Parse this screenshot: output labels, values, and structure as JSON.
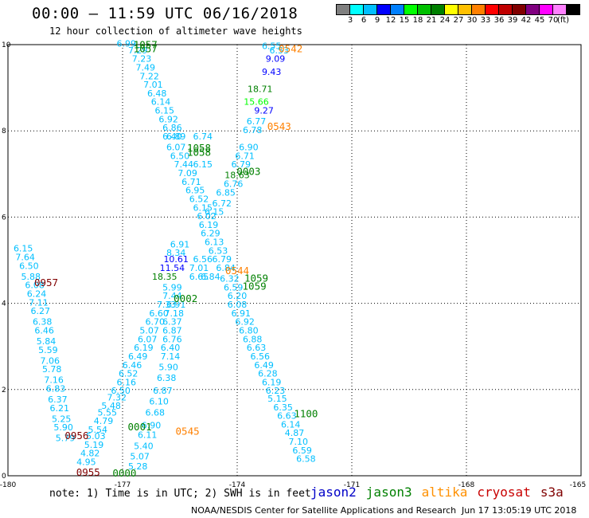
{
  "header": {
    "title": "00:00 – 11:59 UTC 06/16/2018",
    "subtitle": "12 hour collection of altimeter wave heights"
  },
  "colorbar": {
    "unit": "(ft)",
    "colors": [
      "#7f7f7f",
      "#00ffff",
      "#00bfff",
      "#0000ff",
      "#0080ff",
      "#00ff00",
      "#00c000",
      "#008000",
      "#ffff00",
      "#ffc000",
      "#ff8000",
      "#ff0000",
      "#c00000",
      "#800000",
      "#800080",
      "#ff00ff",
      "#ff80ff",
      "#000000"
    ],
    "labels": [
      "3",
      "6",
      "9",
      "12",
      "15",
      "18",
      "21",
      "24",
      "27",
      "30",
      "33",
      "36",
      "39",
      "42",
      "45",
      "70"
    ]
  },
  "chart_data": {
    "type": "scatter",
    "xlim": [
      -180,
      -165
    ],
    "ylim": [
      0,
      10
    ],
    "x_ticks": [
      "-180",
      "-177",
      "-174",
      "-171",
      "-168",
      "-165"
    ],
    "y_ticks": [
      "0",
      "2",
      "4",
      "6",
      "8",
      "10"
    ],
    "grid": true,
    "point_labels": [
      {
        "x": -176.9,
        "y": 9.95,
        "text": "6.99",
        "color": "#00bfff"
      },
      {
        "x": -176.6,
        "y": 9.8,
        "text": "7.29",
        "color": "#00bfff"
      },
      {
        "x": -176.5,
        "y": 9.6,
        "text": "7.23",
        "color": "#00bfff"
      },
      {
        "x": -176.4,
        "y": 9.4,
        "text": "7.49",
        "color": "#00bfff"
      },
      {
        "x": -176.3,
        "y": 9.2,
        "text": "7.22",
        "color": "#00bfff"
      },
      {
        "x": -176.2,
        "y": 9.0,
        "text": "7.01",
        "color": "#00bfff"
      },
      {
        "x": -176.1,
        "y": 8.8,
        "text": "6.48",
        "color": "#00bfff"
      },
      {
        "x": -176.0,
        "y": 8.6,
        "text": "6.14",
        "color": "#00bfff"
      },
      {
        "x": -175.9,
        "y": 8.4,
        "text": "6.15",
        "color": "#00bfff"
      },
      {
        "x": -175.8,
        "y": 8.2,
        "text": "6.92",
        "color": "#00bfff"
      },
      {
        "x": -175.7,
        "y": 8.0,
        "text": "6.86",
        "color": "#00bfff"
      },
      {
        "x": -175.7,
        "y": 7.8,
        "text": "6.40",
        "color": "#00bfff"
      },
      {
        "x": -175.6,
        "y": 7.55,
        "text": "6.07",
        "color": "#00bfff"
      },
      {
        "x": -175.5,
        "y": 7.35,
        "text": "6.50",
        "color": "#00bfff"
      },
      {
        "x": -175.4,
        "y": 7.15,
        "text": "7.44",
        "color": "#00bfff"
      },
      {
        "x": -175.3,
        "y": 6.95,
        "text": "7.09",
        "color": "#00bfff"
      },
      {
        "x": -175.2,
        "y": 6.75,
        "text": "6.71",
        "color": "#00bfff"
      },
      {
        "x": -175.1,
        "y": 6.55,
        "text": "6.95",
        "color": "#00bfff"
      },
      {
        "x": -175.0,
        "y": 6.35,
        "text": "6.52",
        "color": "#00bfff"
      },
      {
        "x": -174.9,
        "y": 6.15,
        "text": "6.15",
        "color": "#00bfff"
      },
      {
        "x": -174.8,
        "y": 5.95,
        "text": "6.02",
        "color": "#00bfff"
      },
      {
        "x": -174.75,
        "y": 5.75,
        "text": "6.19",
        "color": "#00bfff"
      },
      {
        "x": -174.7,
        "y": 5.55,
        "text": "6.29",
        "color": "#00bfff"
      },
      {
        "x": -174.6,
        "y": 5.35,
        "text": "6.13",
        "color": "#00bfff"
      },
      {
        "x": -174.5,
        "y": 5.15,
        "text": "6.53",
        "color": "#00bfff"
      },
      {
        "x": -174.4,
        "y": 4.95,
        "text": "6.79",
        "color": "#00bfff"
      },
      {
        "x": -174.3,
        "y": 4.75,
        "text": "6.84",
        "color": "#00bfff"
      },
      {
        "x": -174.2,
        "y": 4.5,
        "text": "6.32",
        "color": "#00bfff"
      },
      {
        "x": -174.1,
        "y": 4.3,
        "text": "6.59",
        "color": "#00bfff"
      },
      {
        "x": -174.0,
        "y": 4.1,
        "text": "6.20",
        "color": "#00bfff"
      },
      {
        "x": -174.0,
        "y": 3.9,
        "text": "6.08",
        "color": "#00bfff"
      },
      {
        "x": -173.9,
        "y": 3.7,
        "text": "6.91",
        "color": "#00bfff"
      },
      {
        "x": -173.8,
        "y": 3.5,
        "text": "6.92",
        "color": "#00bfff"
      },
      {
        "x": -173.7,
        "y": 3.3,
        "text": "6.80",
        "color": "#00bfff"
      },
      {
        "x": -173.6,
        "y": 3.1,
        "text": "6.88",
        "color": "#00bfff"
      },
      {
        "x": -173.5,
        "y": 2.9,
        "text": "6.63",
        "color": "#00bfff"
      },
      {
        "x": -173.4,
        "y": 2.7,
        "text": "6.56",
        "color": "#00bfff"
      },
      {
        "x": -173.3,
        "y": 2.5,
        "text": "6.49",
        "color": "#00bfff"
      },
      {
        "x": -173.2,
        "y": 2.3,
        "text": "6.28",
        "color": "#00bfff"
      },
      {
        "x": -173.1,
        "y": 2.1,
        "text": "6.19",
        "color": "#00bfff"
      },
      {
        "x": -173.0,
        "y": 1.9,
        "text": "6.23",
        "color": "#00bfff"
      },
      {
        "x": -172.95,
        "y": 1.72,
        "text": "5.15",
        "color": "#00bfff"
      },
      {
        "x": -172.8,
        "y": 1.52,
        "text": "6.35",
        "color": "#00bfff"
      },
      {
        "x": -172.7,
        "y": 1.32,
        "text": "6.63",
        "color": "#00bfff"
      },
      {
        "x": -172.6,
        "y": 1.12,
        "text": "6.14",
        "color": "#00bfff"
      },
      {
        "x": -172.5,
        "y": 0.92,
        "text": "4.87",
        "color": "#00bfff"
      },
      {
        "x": -172.4,
        "y": 0.72,
        "text": "7.10",
        "color": "#00bfff"
      },
      {
        "x": -172.3,
        "y": 0.52,
        "text": "6.59",
        "color": "#00bfff"
      },
      {
        "x": -172.2,
        "y": 0.32,
        "text": "6.58",
        "color": "#00bfff"
      },
      {
        "x": -173.1,
        "y": 9.9,
        "text": "6.55",
        "color": "#00bfff"
      },
      {
        "x": -172.9,
        "y": 9.8,
        "text": "6.53",
        "color": "#00bfff"
      },
      {
        "x": -173.0,
        "y": 9.6,
        "text": "9.09",
        "color": "#0000ff"
      },
      {
        "x": -173.1,
        "y": 9.3,
        "text": "9.43",
        "color": "#0000ff"
      },
      {
        "x": -173.3,
        "y": 8.4,
        "text": "9.27",
        "color": "#0000ff"
      },
      {
        "x": -173.4,
        "y": 8.9,
        "text": "18.71",
        "color": "#008000"
      },
      {
        "x": -173.5,
        "y": 8.6,
        "text": "15.66",
        "color": "#00ff00"
      },
      {
        "x": -173.5,
        "y": 8.15,
        "text": "6.77",
        "color": "#00bfff"
      },
      {
        "x": -173.6,
        "y": 7.95,
        "text": "6.78",
        "color": "#00bfff"
      },
      {
        "x": -173.7,
        "y": 7.55,
        "text": "6.90",
        "color": "#00bfff"
      },
      {
        "x": -173.8,
        "y": 7.35,
        "text": "6.71",
        "color": "#00bfff"
      },
      {
        "x": -173.9,
        "y": 7.15,
        "text": "6.79",
        "color": "#00bfff"
      },
      {
        "x": -174.0,
        "y": 6.9,
        "text": "18.63",
        "color": "#008000"
      },
      {
        "x": -174.1,
        "y": 6.7,
        "text": "6.76",
        "color": "#00bfff"
      },
      {
        "x": -174.3,
        "y": 6.5,
        "text": "6.85",
        "color": "#00bfff"
      },
      {
        "x": -174.4,
        "y": 6.25,
        "text": "6.72",
        "color": "#00bfff"
      },
      {
        "x": -174.6,
        "y": 6.05,
        "text": "6.15",
        "color": "#00bfff"
      },
      {
        "x": -175.6,
        "y": 4.95,
        "text": "10.61",
        "color": "#0000ff"
      },
      {
        "x": -175.7,
        "y": 4.75,
        "text": "11.54",
        "color": "#0000ff"
      },
      {
        "x": -175.5,
        "y": 5.3,
        "text": "6.91",
        "color": "#00bfff"
      },
      {
        "x": -175.6,
        "y": 5.1,
        "text": "8.34",
        "color": "#00bfff"
      },
      {
        "x": -175.9,
        "y": 4.55,
        "text": "18.35",
        "color": "#008000"
      },
      {
        "x": -175.7,
        "y": 4.3,
        "text": "5.99",
        "color": "#00bfff"
      },
      {
        "x": -175.7,
        "y": 4.1,
        "text": "7.44",
        "color": "#00bfff"
      },
      {
        "x": -175.85,
        "y": 3.9,
        "text": "7.33",
        "color": "#00bfff"
      },
      {
        "x": -175.6,
        "y": 3.9,
        "text": "6.91",
        "color": "#00bfff"
      },
      {
        "x": -176.05,
        "y": 3.7,
        "text": "6.60",
        "color": "#00bfff"
      },
      {
        "x": -175.65,
        "y": 3.7,
        "text": "7.18",
        "color": "#00bfff"
      },
      {
        "x": -176.15,
        "y": 3.5,
        "text": "6.70",
        "color": "#00bfff"
      },
      {
        "x": -175.7,
        "y": 3.5,
        "text": "6.37",
        "color": "#00bfff"
      },
      {
        "x": -176.3,
        "y": 3.3,
        "text": "5.07",
        "color": "#00bfff"
      },
      {
        "x": -175.7,
        "y": 3.3,
        "text": "6.87",
        "color": "#00bfff"
      },
      {
        "x": -176.35,
        "y": 3.1,
        "text": "6.07",
        "color": "#00bfff"
      },
      {
        "x": -175.7,
        "y": 3.1,
        "text": "6.76",
        "color": "#00bfff"
      },
      {
        "x": -176.45,
        "y": 2.9,
        "text": "6.19",
        "color": "#00bfff"
      },
      {
        "x": -175.75,
        "y": 2.9,
        "text": "6.40",
        "color": "#00bfff"
      },
      {
        "x": -176.6,
        "y": 2.7,
        "text": "6.49",
        "color": "#00bfff"
      },
      {
        "x": -175.75,
        "y": 2.7,
        "text": "7.14",
        "color": "#00bfff"
      },
      {
        "x": -176.75,
        "y": 2.5,
        "text": "6.46",
        "color": "#00bfff"
      },
      {
        "x": -175.8,
        "y": 2.45,
        "text": "5.90",
        "color": "#00bfff"
      },
      {
        "x": -176.85,
        "y": 2.3,
        "text": "6.52",
        "color": "#00bfff"
      },
      {
        "x": -176.9,
        "y": 2.1,
        "text": "6.16",
        "color": "#00bfff"
      },
      {
        "x": -175.85,
        "y": 2.2,
        "text": "6.38",
        "color": "#00bfff"
      },
      {
        "x": -177.05,
        "y": 1.9,
        "text": "6.50",
        "color": "#00bfff"
      },
      {
        "x": -175.95,
        "y": 1.9,
        "text": "6.87",
        "color": "#00bfff"
      },
      {
        "x": -177.15,
        "y": 1.75,
        "text": "7.32",
        "color": "#00bfff"
      },
      {
        "x": -177.3,
        "y": 1.55,
        "text": "5.48",
        "color": "#00bfff"
      },
      {
        "x": -176.05,
        "y": 1.65,
        "text": "6.10",
        "color": "#00bfff"
      },
      {
        "x": -177.4,
        "y": 1.4,
        "text": "5.55",
        "color": "#00bfff"
      },
      {
        "x": -176.15,
        "y": 1.4,
        "text": "6.68",
        "color": "#00bfff"
      },
      {
        "x": -177.5,
        "y": 1.2,
        "text": "4.79",
        "color": "#00bfff"
      },
      {
        "x": -176.25,
        "y": 1.1,
        "text": "6.90",
        "color": "#00bfff"
      },
      {
        "x": -177.65,
        "y": 1.0,
        "text": "5.54",
        "color": "#00bfff"
      },
      {
        "x": -177.7,
        "y": 0.85,
        "text": "5.03",
        "color": "#00bfff"
      },
      {
        "x": -176.35,
        "y": 0.88,
        "text": "6.11",
        "color": "#00bfff"
      },
      {
        "x": -177.75,
        "y": 0.65,
        "text": "5.19",
        "color": "#00bfff"
      },
      {
        "x": -176.45,
        "y": 0.62,
        "text": "5.40",
        "color": "#00bfff"
      },
      {
        "x": -177.85,
        "y": 0.45,
        "text": "4.82",
        "color": "#00bfff"
      },
      {
        "x": -176.55,
        "y": 0.38,
        "text": "5.07",
        "color": "#00bfff"
      },
      {
        "x": -177.95,
        "y": 0.25,
        "text": "4.95",
        "color": "#00bfff"
      },
      {
        "x": -176.6,
        "y": 0.15,
        "text": "5.28",
        "color": "#00bfff"
      },
      {
        "x": -179.6,
        "y": 5.2,
        "text": "6.15",
        "color": "#00bfff"
      },
      {
        "x": -179.55,
        "y": 5.0,
        "text": "7.64",
        "color": "#00bfff"
      },
      {
        "x": -179.45,
        "y": 4.8,
        "text": "6.50",
        "color": "#00bfff"
      },
      {
        "x": -179.4,
        "y": 4.55,
        "text": "5.88",
        "color": "#00bfff"
      },
      {
        "x": -179.3,
        "y": 4.35,
        "text": "6.08",
        "color": "#00bfff"
      },
      {
        "x": -179.25,
        "y": 4.15,
        "text": "6.24",
        "color": "#00bfff"
      },
      {
        "x": -179.2,
        "y": 3.95,
        "text": "7.11",
        "color": "#00bfff"
      },
      {
        "x": -179.15,
        "y": 3.75,
        "text": "6.27",
        "color": "#00bfff"
      },
      {
        "x": -179.1,
        "y": 3.5,
        "text": "6.38",
        "color": "#00bfff"
      },
      {
        "x": -179.05,
        "y": 3.3,
        "text": "6.46",
        "color": "#00bfff"
      },
      {
        "x": -179.0,
        "y": 3.05,
        "text": "5.84",
        "color": "#00bfff"
      },
      {
        "x": -178.95,
        "y": 2.85,
        "text": "5.59",
        "color": "#00bfff"
      },
      {
        "x": -178.9,
        "y": 2.6,
        "text": "7.06",
        "color": "#00bfff"
      },
      {
        "x": -178.85,
        "y": 2.4,
        "text": "5.78",
        "color": "#00bfff"
      },
      {
        "x": -178.8,
        "y": 2.15,
        "text": "7.16",
        "color": "#00bfff"
      },
      {
        "x": -178.75,
        "y": 1.95,
        "text": "6.83",
        "color": "#00bfff"
      },
      {
        "x": -178.7,
        "y": 1.7,
        "text": "6.37",
        "color": "#00bfff"
      },
      {
        "x": -178.65,
        "y": 1.5,
        "text": "6.21",
        "color": "#00bfff"
      },
      {
        "x": -178.6,
        "y": 1.25,
        "text": "5.25",
        "color": "#00bfff"
      },
      {
        "x": -178.55,
        "y": 1.05,
        "text": "5.90",
        "color": "#00bfff"
      },
      {
        "x": -178.5,
        "y": 0.8,
        "text": "5.79",
        "color": "#00bfff"
      },
      {
        "x": -175.0,
        "y": 4.55,
        "text": "6.65",
        "color": "#00bfff"
      },
      {
        "x": -174.7,
        "y": 4.55,
        "text": "6.84",
        "color": "#00bfff"
      },
      {
        "x": -175.0,
        "y": 4.75,
        "text": "7.01",
        "color": "#00bfff"
      },
      {
        "x": -174.9,
        "y": 4.95,
        "text": "6.56",
        "color": "#00bfff"
      },
      {
        "x": -175.6,
        "y": 7.8,
        "text": "6.89",
        "color": "#00bfff"
      },
      {
        "x": -174.9,
        "y": 7.8,
        "text": "6.74",
        "color": "#00bfff"
      },
      {
        "x": -174.9,
        "y": 7.15,
        "text": "6.15",
        "color": "#00bfff"
      }
    ],
    "time_labels": [
      {
        "x": -176.4,
        "y": 9.92,
        "text": "1057",
        "color": "#008000"
      },
      {
        "x": -176.4,
        "y": 9.82,
        "text": "1057",
        "color": "#008000"
      },
      {
        "x": -172.6,
        "y": 9.82,
        "text": "0542",
        "color": "#ff8000"
      },
      {
        "x": -172.9,
        "y": 8.02,
        "text": "0543",
        "color": "#ff8000"
      },
      {
        "x": -175.0,
        "y": 7.52,
        "text": "1058",
        "color": "#008000"
      },
      {
        "x": -175.0,
        "y": 7.42,
        "text": "1058",
        "color": "#008000"
      },
      {
        "x": -173.7,
        "y": 6.98,
        "text": "0003",
        "color": "#008000"
      },
      {
        "x": -179.0,
        "y": 4.4,
        "text": "0957",
        "color": "#800000"
      },
      {
        "x": -174.0,
        "y": 4.68,
        "text": "0544",
        "color": "#ff8000"
      },
      {
        "x": -173.5,
        "y": 4.5,
        "text": "1059",
        "color": "#008000"
      },
      {
        "x": -173.55,
        "y": 4.32,
        "text": "1059",
        "color": "#008000"
      },
      {
        "x": -175.35,
        "y": 4.03,
        "text": "0002",
        "color": "#008000"
      },
      {
        "x": -172.2,
        "y": 1.36,
        "text": "1100",
        "color": "#008000"
      },
      {
        "x": -176.55,
        "y": 1.05,
        "text": "0001",
        "color": "#008000"
      },
      {
        "x": -175.3,
        "y": 0.95,
        "text": "0545",
        "color": "#ff8000"
      },
      {
        "x": -178.2,
        "y": 0.85,
        "text": "0956",
        "color": "#800000"
      },
      {
        "x": -177.9,
        "y": 0.0,
        "text": "0955",
        "color": "#800000"
      },
      {
        "x": -176.95,
        "y": -0.02,
        "text": "0000",
        "color": "#008000"
      }
    ]
  },
  "footer": {
    "note": "note: 1) Time is in UTC; 2) SWH is in feet",
    "legend": [
      {
        "name": "jason2",
        "color": "#0000c8"
      },
      {
        "name": "jason3",
        "color": "#008000"
      },
      {
        "name": "altika",
        "color": "#ff9000"
      },
      {
        "name": "cryosat",
        "color": "#c80000"
      },
      {
        "name": "s3a",
        "color": "#800000"
      }
    ],
    "credit": "NOAA/NESDIS Center for Satellite Applications and Research",
    "timestamp": "Jun 17 13:05:19 UTC 2018"
  }
}
